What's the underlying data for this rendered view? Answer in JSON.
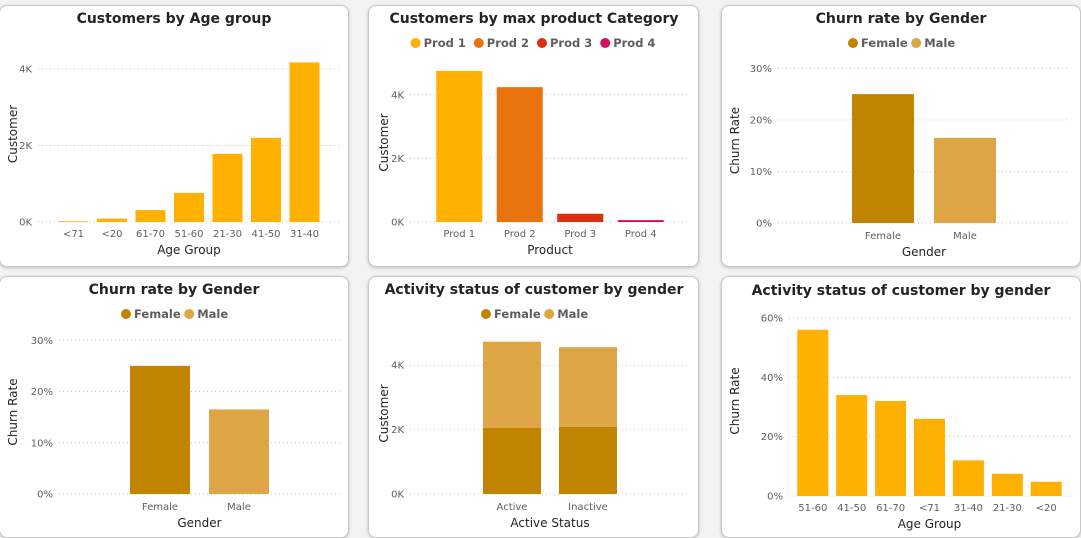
{
  "chart_data": [
    {
      "type": "bar",
      "title": "Customers by Age group",
      "xlabel": "Age Group",
      "ylabel": "Customer",
      "ylim": [
        0,
        4600
      ],
      "yticks": [
        0,
        2000,
        4000
      ],
      "ytick_labels": [
        "0K",
        "2K",
        "4K"
      ],
      "legend": [],
      "categories": [
        "<71",
        "<20",
        "61-70",
        "51-60",
        "21-30",
        "41-50",
        "31-40"
      ],
      "series": [
        {
          "name": "",
          "color": "#FFB000",
          "values": [
            20,
            90,
            310,
            760,
            1780,
            2200,
            4170
          ]
        }
      ],
      "grid": true
    },
    {
      "type": "bar",
      "title": "Customers by max product Category",
      "xlabel": "Product",
      "ylabel": "Customer",
      "ylim": [
        0,
        5000
      ],
      "yticks": [
        0,
        2000,
        4000
      ],
      "ytick_labels": [
        "0K",
        "2K",
        "4K"
      ],
      "legend": [
        {
          "label": "Prod 1",
          "color": "#FFB000"
        },
        {
          "label": "Prod 2",
          "color": "#E8720C"
        },
        {
          "label": "Prod 3",
          "color": "#D9310F"
        },
        {
          "label": "Prod 4",
          "color": "#D4115C"
        }
      ],
      "legend_position": "top",
      "categories": [
        "Prod 1",
        "Prod 2",
        "Prod 3",
        "Prod 4"
      ],
      "bar_colors": [
        "#FFB000",
        "#E8720C",
        "#D9310F",
        "#D4115C"
      ],
      "series": [
        {
          "name": "",
          "values": [
            4750,
            4240,
            260,
            60
          ]
        }
      ],
      "grid": true
    },
    {
      "type": "bar",
      "title": "Churn rate by Gender",
      "xlabel": "Gender",
      "ylabel": "Churn Rate",
      "ylim": [
        0,
        0.32
      ],
      "yticks": [
        0,
        0.1,
        0.2,
        0.3
      ],
      "ytick_labels": [
        "0%",
        "10%",
        "20%",
        "30%"
      ],
      "legend": [
        {
          "label": "Female",
          "color": "#C08400"
        },
        {
          "label": "Male",
          "color": "#DDA544"
        }
      ],
      "legend_position": "top",
      "categories": [
        "Female",
        "Male"
      ],
      "bar_colors": [
        "#C08400",
        "#DDA544"
      ],
      "series": [
        {
          "name": "",
          "values": [
            0.25,
            0.165
          ]
        }
      ],
      "grid": true
    },
    {
      "type": "bar",
      "title": "Churn rate by Gender",
      "xlabel": "Gender",
      "ylabel": "Churn Rate",
      "ylim": [
        0,
        0.32
      ],
      "yticks": [
        0,
        0.1,
        0.2,
        0.3
      ],
      "ytick_labels": [
        "0%",
        "10%",
        "20%",
        "30%"
      ],
      "legend": [
        {
          "label": "Female",
          "color": "#C08400"
        },
        {
          "label": "Male",
          "color": "#DDA544"
        }
      ],
      "legend_position": "top",
      "categories": [
        "Female",
        "Male"
      ],
      "bar_colors": [
        "#C08400",
        "#DDA544"
      ],
      "series": [
        {
          "name": "",
          "values": [
            0.25,
            0.165
          ]
        }
      ],
      "grid": true
    },
    {
      "type": "bar",
      "stacked": true,
      "title": "Activity status of customer by gender",
      "xlabel": "Active Status",
      "ylabel": "Customer",
      "ylim": [
        0,
        5000
      ],
      "yticks": [
        0,
        2000,
        4000
      ],
      "ytick_labels": [
        "0K",
        "2K",
        "4K"
      ],
      "legend": [
        {
          "label": "Female",
          "color": "#C08400"
        },
        {
          "label": "Male",
          "color": "#DDA544"
        }
      ],
      "legend_position": "top",
      "categories": [
        "Active",
        "Inactive"
      ],
      "series": [
        {
          "name": "Female",
          "color": "#C08400",
          "values": [
            2050,
            2090
          ]
        },
        {
          "name": "Male",
          "color": "#DDA544",
          "values": [
            2680,
            2470
          ]
        }
      ],
      "grid": true
    },
    {
      "type": "bar",
      "title": "Activity status of customer by gender",
      "xlabel": "Age Group",
      "ylabel": "Churn Rate",
      "ylim": [
        0,
        0.64
      ],
      "yticks": [
        0,
        0.2,
        0.4,
        0.6
      ],
      "ytick_labels": [
        "0%",
        "20%",
        "40%",
        "60%"
      ],
      "legend": [],
      "categories": [
        "51-60",
        "41-50",
        "61-70",
        "<71",
        "31-40",
        "21-30",
        "<20"
      ],
      "series": [
        {
          "name": "",
          "color": "#FFB000",
          "values": [
            0.56,
            0.34,
            0.32,
            0.26,
            0.12,
            0.075,
            0.048
          ]
        }
      ],
      "grid": true
    }
  ]
}
